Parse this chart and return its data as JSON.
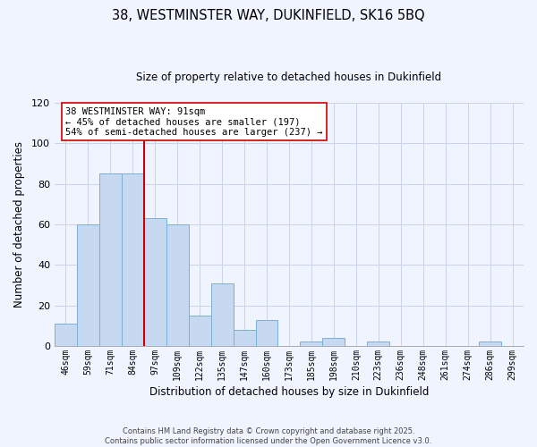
{
  "title": "38, WESTMINSTER WAY, DUKINFIELD, SK16 5BQ",
  "subtitle": "Size of property relative to detached houses in Dukinfield",
  "xlabel": "Distribution of detached houses by size in Dukinfield",
  "ylabel": "Number of detached properties",
  "bar_labels": [
    "46sqm",
    "59sqm",
    "71sqm",
    "84sqm",
    "97sqm",
    "109sqm",
    "122sqm",
    "135sqm",
    "147sqm",
    "160sqm",
    "173sqm",
    "185sqm",
    "198sqm",
    "210sqm",
    "223sqm",
    "236sqm",
    "248sqm",
    "261sqm",
    "274sqm",
    "286sqm",
    "299sqm"
  ],
  "bar_values": [
    11,
    60,
    85,
    85,
    63,
    60,
    15,
    31,
    8,
    13,
    0,
    2,
    4,
    0,
    2,
    0,
    0,
    0,
    0,
    2,
    0
  ],
  "bar_color": "#c6d9f0",
  "bar_edge_color": "#7bafd4",
  "vline_x_index": 4,
  "vline_color": "#cc0000",
  "ylim": [
    0,
    120
  ],
  "yticks": [
    0,
    20,
    40,
    60,
    80,
    100,
    120
  ],
  "annotation_title": "38 WESTMINSTER WAY: 91sqm",
  "annotation_line1": "← 45% of detached houses are smaller (197)",
  "annotation_line2": "54% of semi-detached houses are larger (237) →",
  "footer_line1": "Contains HM Land Registry data © Crown copyright and database right 2025.",
  "footer_line2": "Contains public sector information licensed under the Open Government Licence v3.0.",
  "background_color": "#f0f4ff",
  "grid_color": "#c8d4e8"
}
